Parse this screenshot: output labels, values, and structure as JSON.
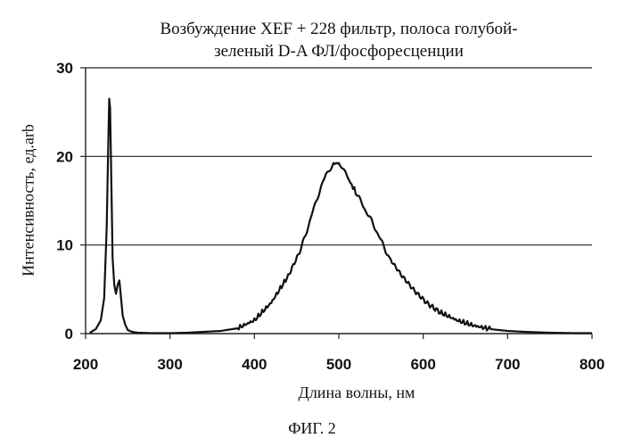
{
  "chart_data": {
    "type": "line",
    "title_line1": "Возбуждение XEF + 228 фильтр, полоса голубой-",
    "title_line2": "зеленый D-A ФЛ/фосфоресценции",
    "xlabel": "Длина волны, нм",
    "ylabel": "Интенсивность, ед.arb",
    "xlim": [
      200,
      800
    ],
    "ylim": [
      0,
      30
    ],
    "x_ticks": [
      "200",
      "300",
      "400",
      "500",
      "600",
      "700",
      "800"
    ],
    "y_ticks": [
      "0",
      "10",
      "20",
      "30"
    ],
    "grid": "horizontal",
    "legend": "none",
    "series": [
      {
        "values_x": [
          205,
          212,
          218,
          222,
          225,
          227,
          228,
          229,
          230,
          232,
          234,
          236,
          238,
          240,
          242,
          244,
          247,
          250,
          255,
          262,
          280,
          300,
          320,
          340,
          360,
          380,
          400,
          420,
          440,
          455,
          465,
          475,
          485,
          492,
          497,
          500,
          505,
          512,
          520,
          530,
          540,
          550,
          560,
          575,
          590,
          605,
          620,
          640,
          660,
          680,
          700,
          720,
          750,
          780,
          800
        ],
        "values_y": [
          0.1,
          0.5,
          1.5,
          4.0,
          12.0,
          22.0,
          26.5,
          25.5,
          20.0,
          8.5,
          5.5,
          4.5,
          5.5,
          6.0,
          4.0,
          2.0,
          1.0,
          0.4,
          0.2,
          0.1,
          0.05,
          0.05,
          0.1,
          0.2,
          0.3,
          0.6,
          1.5,
          3.5,
          6.5,
          9.5,
          12.5,
          15.5,
          18.0,
          19.0,
          19.3,
          19.2,
          18.5,
          17.3,
          16.0,
          14.2,
          12.5,
          10.5,
          8.5,
          6.5,
          4.8,
          3.4,
          2.4,
          1.5,
          0.9,
          0.5,
          0.3,
          0.2,
          0.1,
          0.05,
          0.05
        ],
        "color": "#111111"
      }
    ]
  },
  "figure": {
    "caption": "ФИГ. 2"
  }
}
